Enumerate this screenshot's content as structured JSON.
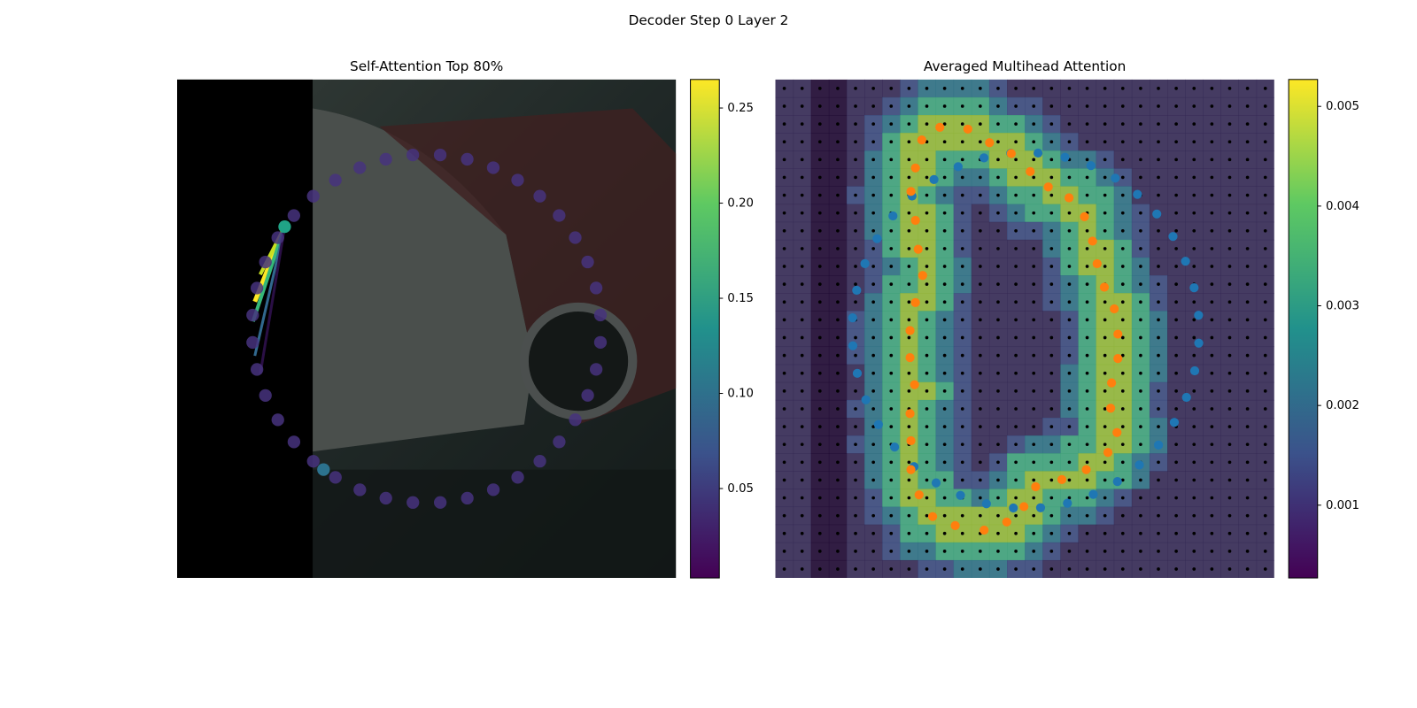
{
  "chart_data": [
    {
      "type": "image",
      "suptitle": "Decoder Step 0 Layer 2",
      "title": "Self-Attention Top 80%",
      "colorbar": {
        "cmap": "viridis",
        "ylim": [
          0.003,
          0.265
        ],
        "yticks": [
          0.05,
          {
            "value": 0.1,
            "label": "0.10"
          },
          0.15,
          {
            "value": 0.2,
            "label": "0.20"
          },
          0.25
        ]
      }
    },
    {
      "type": "heatmap",
      "title": "Averaged Multihead Attention",
      "colorbar": {
        "cmap": "viridis",
        "ylim": [
          0.00027,
          0.00527
        ],
        "yticks": [
          0.001,
          0.002,
          0.003,
          0.004,
          0.005
        ]
      }
    }
  ]
}
